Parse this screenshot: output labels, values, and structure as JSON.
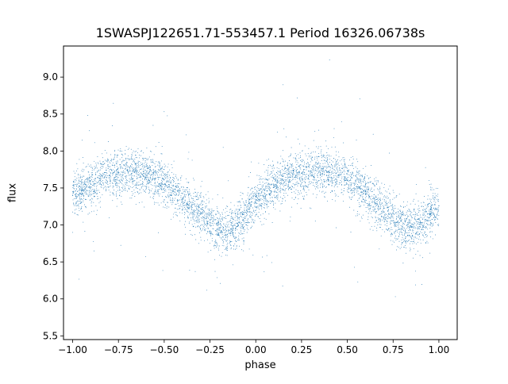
{
  "chart_data": {
    "type": "scatter",
    "title": "1SWASPJ122651.71-553457.1 Period 16326.06738s",
    "xlabel": "phase",
    "ylabel": "flux",
    "xlim": [
      -1.05,
      1.1
    ],
    "ylim": [
      5.45,
      9.42
    ],
    "xticks": [
      -1.0,
      -0.75,
      -0.5,
      -0.25,
      0.0,
      0.25,
      0.5,
      0.75,
      1.0
    ],
    "xtick_labels": [
      "−1.00",
      "−0.75",
      "−0.50",
      "−0.25",
      "0.00",
      "0.25",
      "0.50",
      "0.75",
      "1.00"
    ],
    "yticks": [
      5.5,
      6.0,
      6.5,
      7.0,
      7.5,
      8.0,
      8.5,
      9.0
    ],
    "ytick_labels": [
      "5.5",
      "6.0",
      "6.5",
      "7.0",
      "7.5",
      "8.0",
      "8.5",
      "9.0"
    ],
    "grid": false,
    "marker_color": "#1f77b4",
    "series": [
      {
        "x": [
          -1.0,
          -0.95,
          -0.9,
          -0.85,
          -0.8,
          -0.75,
          -0.7,
          -0.65,
          -0.6,
          -0.55,
          -0.5,
          -0.45,
          -0.4,
          -0.35,
          -0.3,
          -0.25,
          -0.2,
          -0.15,
          -0.1,
          -0.05,
          0.0,
          0.05,
          0.1,
          0.15,
          0.2,
          0.25,
          0.3,
          0.35,
          0.4,
          0.45,
          0.5,
          0.55,
          0.6,
          0.65,
          0.7,
          0.75,
          0.8,
          0.85,
          0.9,
          0.95,
          1.0
        ],
        "y": [
          7.4,
          7.48,
          7.55,
          7.62,
          7.67,
          7.71,
          7.73,
          7.72,
          7.69,
          7.63,
          7.55,
          7.46,
          7.36,
          7.26,
          7.15,
          7.03,
          6.93,
          6.92,
          7.02,
          7.16,
          7.3,
          7.42,
          7.52,
          7.6,
          7.66,
          7.7,
          7.73,
          7.73,
          7.71,
          7.67,
          7.6,
          7.52,
          7.42,
          7.3,
          7.17,
          7.06,
          6.98,
          6.97,
          7.03,
          7.14,
          7.26
        ]
      }
    ]
  }
}
